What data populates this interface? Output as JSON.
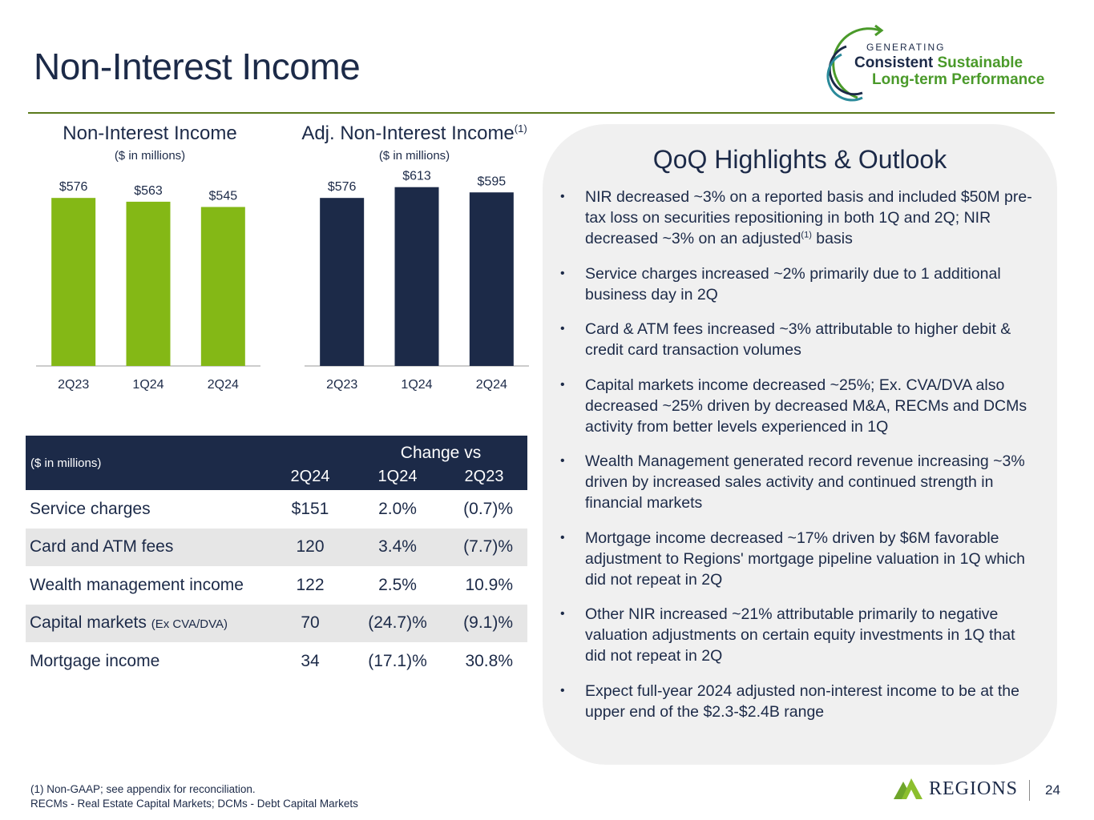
{
  "title": "Non-Interest Income",
  "logo": {
    "small": "GENERATING",
    "line1_a": "Consistent",
    "line1_b": "Sustainable",
    "line2": "Long-term Performance"
  },
  "colors": {
    "navy": "#1c2a48",
    "green": "#84b816",
    "rule": "#5a7a1c"
  },
  "chart_data": [
    {
      "type": "bar",
      "title": "Non-Interest Income",
      "subtitle": "($ in millions)",
      "categories": [
        "2Q23",
        "1Q24",
        "2Q24"
      ],
      "values": [
        576,
        563,
        545
      ],
      "labels": [
        "$576",
        "$563",
        "$545"
      ],
      "ylim": [
        0,
        700
      ],
      "color": "#84b816"
    },
    {
      "type": "bar",
      "title": "Adj. Non-Interest Income",
      "title_sup": "(1)",
      "subtitle": "($ in millions)",
      "categories": [
        "2Q23",
        "1Q24",
        "2Q24"
      ],
      "values": [
        576,
        613,
        595
      ],
      "labels": [
        "$576",
        "$613",
        "$595"
      ],
      "ylim": [
        0,
        700
      ],
      "color": "#1c2a48"
    }
  ],
  "table": {
    "unit": "($ in millions)",
    "change_header": "Change vs",
    "columns": [
      "2Q24",
      "1Q24",
      "2Q23"
    ],
    "rows": [
      {
        "label": "Service charges",
        "suffix": "",
        "values": [
          "$151",
          "2.0%",
          "(0.7)%"
        ]
      },
      {
        "label": "Card and ATM fees",
        "suffix": "",
        "values": [
          "120",
          "3.4%",
          "(7.7)%"
        ]
      },
      {
        "label": "Wealth management income",
        "suffix": "",
        "values": [
          "122",
          "2.5%",
          "10.9%"
        ]
      },
      {
        "label": "Capital markets",
        "suffix": "(Ex CVA/DVA)",
        "values": [
          "70",
          "(24.7)%",
          "(9.1)%"
        ]
      },
      {
        "label": "Mortgage income",
        "suffix": "",
        "values": [
          "34",
          "(17.1)%",
          "30.8%"
        ]
      }
    ]
  },
  "highlights": {
    "title": "QoQ Highlights & Outlook",
    "b1_a": "NIR decreased ~3% on a reported basis and included $50M pre-tax loss on securities repositioning in both 1Q and 2Q; NIR decreased ~3% on an adjusted",
    "b1_sup": "(1)",
    "b1_b": " basis",
    "b2": "Service charges increased ~2% primarily due to 1 additional business day in 2Q",
    "b3": "Card & ATM fees increased ~3% attributable to higher debit & credit card transaction volumes",
    "b4": "Capital markets income decreased ~25%; Ex. CVA/DVA also decreased ~25% driven by decreased M&A, RECMs and DCMs activity from better levels experienced in 1Q",
    "b5": "Wealth Management generated record revenue increasing ~3% driven by increased sales activity and continued strength in financial markets",
    "b6": "Mortgage income decreased ~17% driven by $6M favorable adjustment to Regions' mortgage pipeline valuation in 1Q which did not repeat in 2Q",
    "b7": "Other NIR increased ~21% attributable primarily to negative valuation adjustments on certain equity investments in 1Q that did not repeat in 2Q",
    "b8": "Expect full-year 2024 adjusted non-interest income to be at the upper end of the $2.3-$2.4B range"
  },
  "footnotes": {
    "line1": "(1)  Non-GAAP; see appendix for reconciliation.",
    "line2": "RECMs - Real Estate Capital Markets; DCMs - Debt Capital Markets"
  },
  "brand": {
    "name": "REGIONS"
  },
  "page_number": "24"
}
